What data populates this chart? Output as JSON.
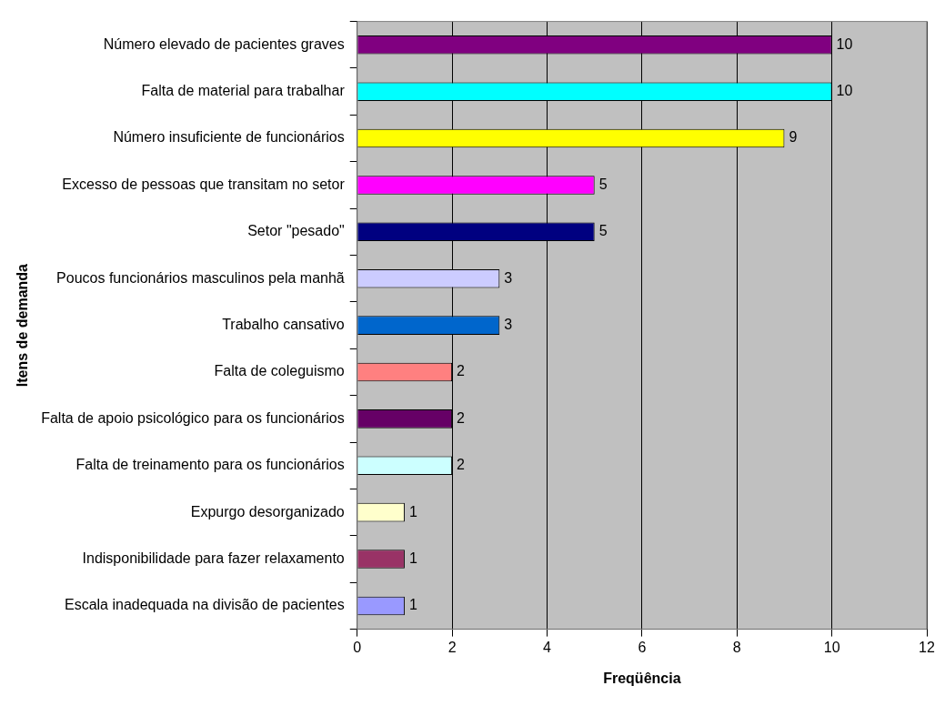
{
  "chart_data": {
    "type": "bar",
    "orientation": "horizontal",
    "xlabel": "Freqüência",
    "ylabel": "Itens de demanda",
    "categories": [
      "Número elevado de pacientes graves",
      "Falta de material para trabalhar",
      "Número insuficiente de funcionários",
      "Excesso de pessoas que transitam no setor",
      "Setor \"pesado\"",
      "Poucos funcionários masculinos pela manhã",
      "Trabalho cansativo",
      "Falta de coleguismo",
      "Falta de apoio psicológico para os funcionários",
      "Falta de treinamento para os funcionários",
      "Expurgo desorganizado",
      "Indisponibilidade para fazer relaxamento",
      "Escala inadequada na divisão de pacientes"
    ],
    "values": [
      10,
      10,
      9,
      5,
      5,
      3,
      3,
      2,
      2,
      2,
      1,
      1,
      1
    ],
    "colors": [
      "#800080",
      "#00ffff",
      "#ffff00",
      "#ff00ff",
      "#000080",
      "#ccccff",
      "#0066cc",
      "#ff8080",
      "#660066",
      "#ccffff",
      "#ffffcc",
      "#993366",
      "#9999ff"
    ],
    "xlim": [
      0,
      12
    ],
    "xticks": [
      0,
      2,
      4,
      6,
      8,
      10,
      12
    ],
    "grid": "x",
    "data_labels": true,
    "legend": false
  }
}
